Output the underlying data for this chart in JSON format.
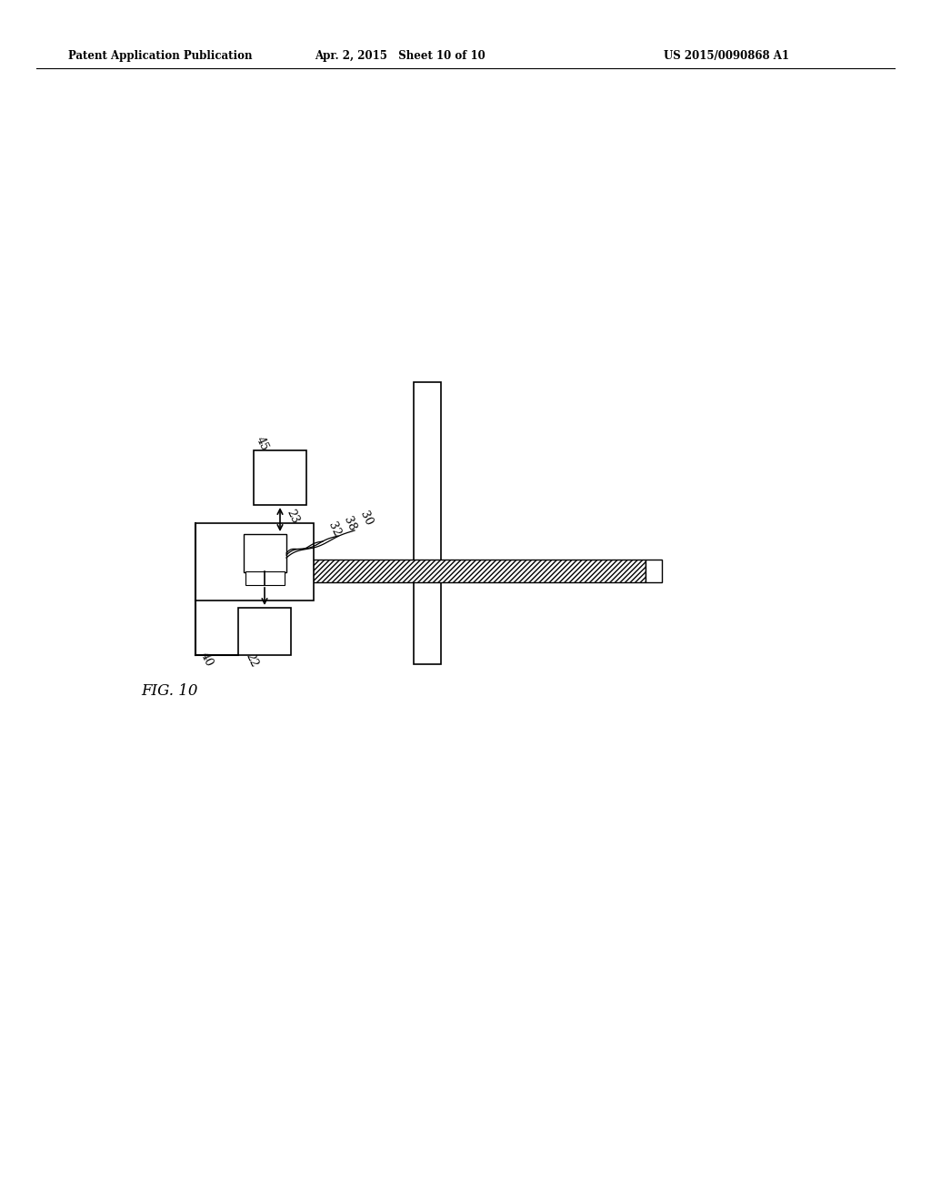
{
  "bg_color": "#ffffff",
  "header_left": "Patent Application Publication",
  "header_center": "Apr. 2, 2015   Sheet 10 of 10",
  "header_right": "US 2015/0090868 A1",
  "fig_label": "FIG. 10"
}
